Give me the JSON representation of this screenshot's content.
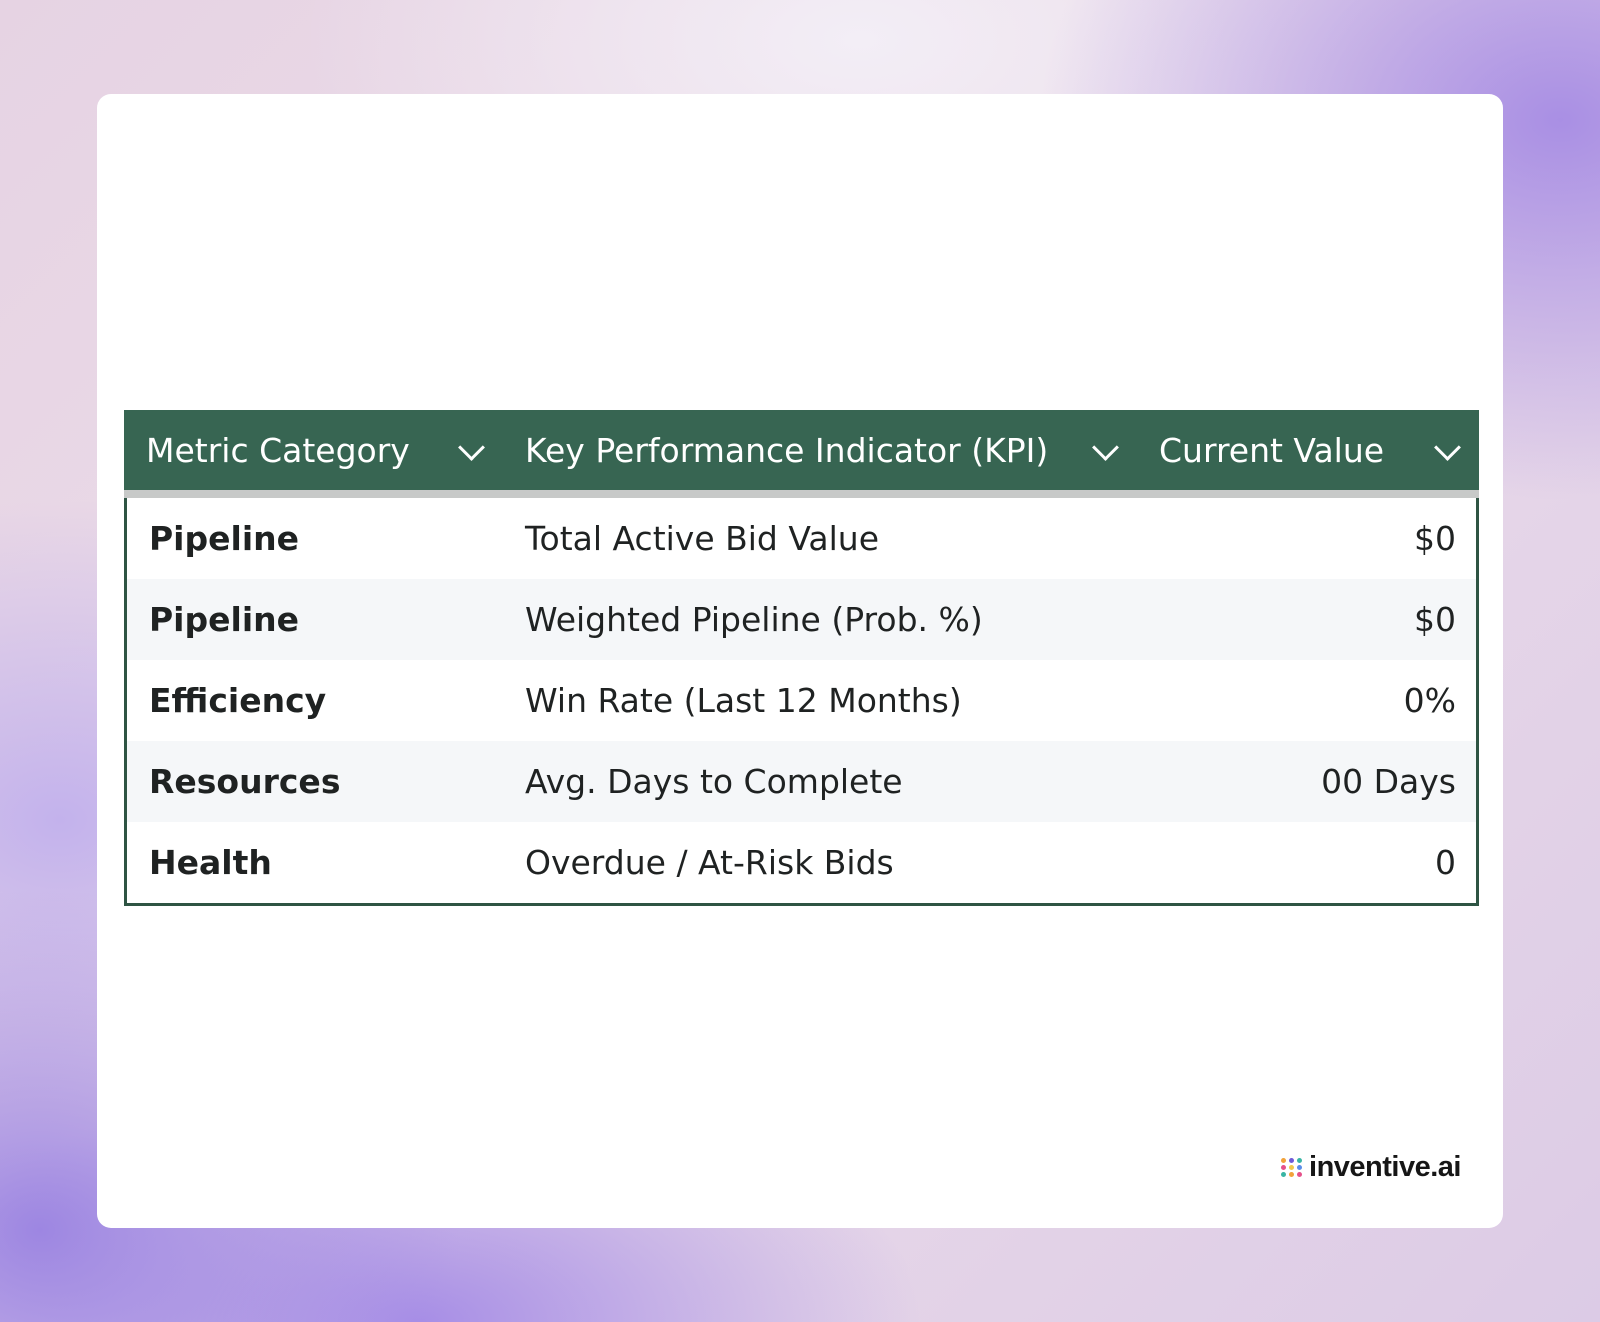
{
  "table": {
    "headers": [
      "Metric Category",
      "Key Performance Indicator (KPI)",
      "Current Value"
    ],
    "rows": [
      {
        "category": "Pipeline",
        "kpi": "Total Active Bid Value",
        "value": "$0"
      },
      {
        "category": "Pipeline",
        "kpi": "Weighted Pipeline (Prob. %)",
        "value": "$0"
      },
      {
        "category": "Efficiency",
        "kpi": "Win Rate (Last 12 Months)",
        "value": "0%"
      },
      {
        "category": "Resources",
        "kpi": "Avg. Days to Complete",
        "value": "00 Days"
      },
      {
        "category": "Health",
        "kpi": "Overdue / At-Risk Bids",
        "value": "0"
      }
    ]
  },
  "brand": {
    "text": "inventive.ai",
    "logo_icon": "dot-cluster-icon"
  },
  "colors": {
    "header_bg": "#376552",
    "header_text": "#ffffff",
    "row_alt_bg": "#f5f7f9",
    "border": "#2e5443"
  }
}
